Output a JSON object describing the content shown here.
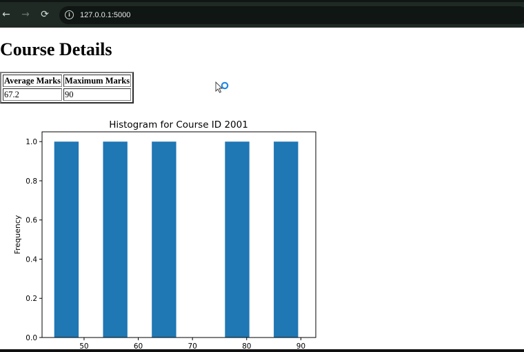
{
  "browser": {
    "back_icon": "←",
    "forward_icon": "→",
    "reload_icon": "⟳",
    "info_icon": "i",
    "url": "127.0.0.1:5000"
  },
  "page": {
    "title": "Course Details",
    "table": {
      "headers": [
        "Average Marks",
        "Maximum Marks"
      ],
      "rows": [
        [
          "67.2",
          "90"
        ]
      ]
    }
  },
  "colors": {
    "bar": "#1f77b4",
    "browser_bar": "#1f2a25"
  },
  "chart_data": {
    "type": "bar",
    "title": "Histogram for Course ID 2001",
    "xlabel": "",
    "ylabel": "Frequency",
    "xlim": [
      42.25,
      92.75
    ],
    "ylim": [
      0,
      1.05
    ],
    "xticks": [
      50,
      60,
      70,
      80,
      90
    ],
    "yticks": [
      0.0,
      0.2,
      0.4,
      0.6,
      0.8,
      1.0
    ],
    "ytick_labels": [
      "0.0",
      "0.2",
      "0.4",
      "0.6",
      "0.8",
      "1.0"
    ],
    "bins": [
      {
        "x0": 44.5,
        "x1": 49.0,
        "count": 1
      },
      {
        "x0": 53.5,
        "x1": 58.0,
        "count": 1
      },
      {
        "x0": 62.5,
        "x1": 67.0,
        "count": 1
      },
      {
        "x0": 71.5,
        "x1": 76.0,
        "count": 0
      },
      {
        "x0": 76.0,
        "x1": 80.5,
        "count": 1
      },
      {
        "x0": 85.0,
        "x1": 89.5,
        "count": 1
      }
    ],
    "grid": false
  }
}
